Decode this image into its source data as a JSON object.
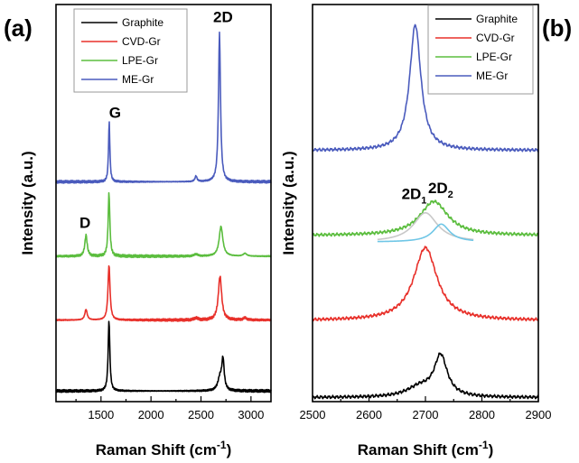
{
  "chart_data": [
    {
      "type": "line",
      "panel_label": "(a)",
      "xlabel": "Raman Shift (cm",
      "xlabel_sup": "-1",
      "xlabel_close": ")",
      "ylabel": "Intensity (a.u.)",
      "xlim": [
        1050,
        3200
      ],
      "xticks": [
        1500,
        2000,
        2500,
        3000
      ],
      "tick_labels": [
        "1500",
        "2000",
        "2500",
        "3000"
      ],
      "legend_position": "top-left",
      "colors": {
        "Graphite": "#000000",
        "CVD-Gr": "#e8302a",
        "LPE-Gr": "#5bbd3e",
        "ME-Gr": "#4a5bbd"
      },
      "series": [
        {
          "name": "Graphite",
          "baseline": 0.0,
          "peaks": [
            [
              1580,
              1.0,
              10
            ],
            [
              2690,
              0.18,
              25
            ],
            [
              2720,
              0.42,
              14
            ]
          ]
        },
        {
          "name": "CVD-Gr",
          "baseline": 1.0,
          "peaks": [
            [
              1350,
              0.15,
              14
            ],
            [
              1580,
              0.78,
              12
            ],
            [
              2450,
              0.03,
              20
            ],
            [
              2690,
              0.62,
              20
            ],
            [
              2940,
              0.03,
              20
            ]
          ]
        },
        {
          "name": "LPE-Gr",
          "baseline": 1.9,
          "peaks": [
            [
              1350,
              0.3,
              14
            ],
            [
              1580,
              0.9,
              10
            ],
            [
              2450,
              0.03,
              20
            ],
            [
              2700,
              0.42,
              22
            ],
            [
              2940,
              0.04,
              20
            ]
          ]
        },
        {
          "name": "ME-Gr",
          "baseline": 2.95,
          "peaks": [
            [
              1582,
              0.85,
              8
            ],
            [
              2450,
              0.08,
              12
            ],
            [
              2685,
              2.1,
              12
            ]
          ]
        }
      ],
      "annotations": [
        {
          "text": "G",
          "x": 1640,
          "y": 3.85
        },
        {
          "text": "D",
          "x": 1340,
          "y": 2.3
        },
        {
          "text": "2D",
          "x": 2720,
          "y": 5.2
        }
      ],
      "ylim": [
        -0.15,
        5.45
      ]
    },
    {
      "type": "line",
      "panel_label": "(b)",
      "xlabel": "Raman Shift (cm",
      "xlabel_sup": "-1",
      "xlabel_close": ")",
      "ylabel": "Intensity (a.u.)",
      "xlim": [
        2500,
        2900
      ],
      "xticks": [
        2500,
        2600,
        2700,
        2800,
        2900
      ],
      "tick_labels": [
        "2500",
        "2600",
        "2700",
        "2800",
        "2900"
      ],
      "legend_position": "top-right",
      "colors": {
        "Graphite": "#000000",
        "CVD-Gr": "#e8302a",
        "LPE-Gr": "#5bbd3e",
        "ME-Gr": "#4a5bbd"
      },
      "series": [
        {
          "name": "Graphite",
          "baseline": 0.0,
          "peaks": [
            [
              2690,
              0.12,
              28
            ],
            [
              2727,
              0.5,
              14
            ]
          ]
        },
        {
          "name": "CVD-Gr",
          "baseline": 0.95,
          "peaks": [
            [
              2700,
              0.9,
              25
            ]
          ]
        },
        {
          "name": "LPE-Gr",
          "baseline": 2.0,
          "peaks": [
            [
              2715,
              0.42,
              30
            ]
          ]
        },
        {
          "name": "ME-Gr",
          "baseline": 3.05,
          "peaks": [
            [
              2682,
              1.55,
              12
            ]
          ]
        }
      ],
      "fit_components": [
        {
          "label": "2D1",
          "color": "#c8c8c8",
          "center": 2700,
          "height": 0.36,
          "width": 26,
          "range": [
            2615,
            2785
          ],
          "baseline": 1.92
        },
        {
          "label": "2D2",
          "color": "#6fc6e6",
          "center": 2728,
          "height": 0.22,
          "width": 18,
          "range": [
            2615,
            2785
          ],
          "baseline": 1.92
        }
      ],
      "annotations": [
        {
          "text": "2D",
          "sub": "1",
          "x": 2680,
          "y": 2.45
        },
        {
          "text": "2D",
          "sub": "2",
          "x": 2727,
          "y": 2.52
        }
      ],
      "ylim": [
        -0.05,
        4.85
      ]
    }
  ]
}
